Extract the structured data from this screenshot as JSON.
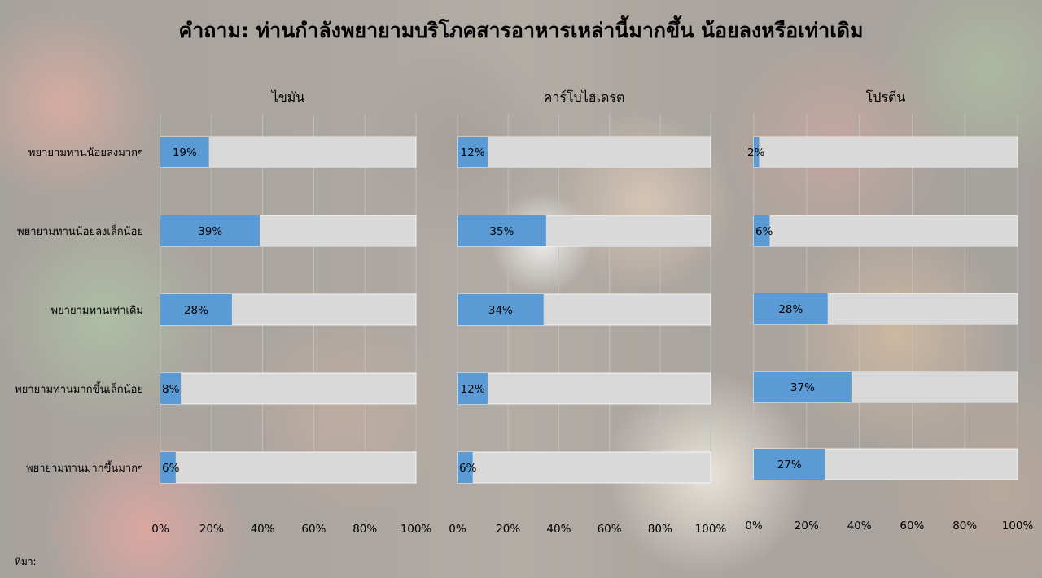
{
  "title": "คำถาม: ท่านกำลังพยายามบริโภคสารอาหารเหล่านี้มากขึ้น น้อยลงหรือเท่าเดิม",
  "source_label": "ที่มา:",
  "colors": {
    "bar": "#5b9bd5",
    "track": "#d9d9d9",
    "grid": "#bfbfbf"
  },
  "chart_data": [
    {
      "type": "bar",
      "orientation": "horizontal",
      "title": "ไขมัน",
      "categories": [
        "พยายามทานน้อยลงมากๆ",
        "พยายามทานน้อยลงเล็กน้อย",
        "พยายามทานเท่าเดิม",
        "พยายามทานมากขึ้นเล็กน้อย",
        "พยายามทานมากขึ้นมากๆ"
      ],
      "values": [
        19,
        39,
        28,
        8,
        6
      ],
      "data_labels": [
        "19%",
        "39%",
        "28%",
        "8%",
        "6%"
      ],
      "xlim": [
        0,
        100
      ],
      "ticks": [
        "0%",
        "20%",
        "40%",
        "60%",
        "80%",
        "100%"
      ],
      "grid": true
    },
    {
      "type": "bar",
      "orientation": "horizontal",
      "title": "คาร์โบไฮเดรต",
      "categories": [
        "พยายามทานน้อยลงมากๆ",
        "พยายามทานน้อยลงเล็กน้อย",
        "พยายามทานเท่าเดิม",
        "พยายามทานมากขึ้นเล็กน้อย",
        "พยายามทานมากขึ้นมากๆ"
      ],
      "values": [
        12,
        35,
        34,
        12,
        6
      ],
      "data_labels": [
        "12%",
        "35%",
        "34%",
        "12%",
        "6%"
      ],
      "xlim": [
        0,
        100
      ],
      "ticks": [
        "0%",
        "20%",
        "40%",
        "60%",
        "80%",
        "100%"
      ],
      "grid": true
    },
    {
      "type": "bar",
      "orientation": "horizontal",
      "title": "โปรตีน",
      "categories": [
        "พยายามทานน้อยลงมากๆ",
        "พยายามทานน้อยลงเล็กน้อย",
        "พยายามทานเท่าเดิม",
        "พยายามทานมากขึ้นเล็กน้อย",
        "พยายามทานมากขึ้นมากๆ"
      ],
      "values": [
        2,
        6,
        28,
        37,
        27
      ],
      "data_labels": [
        "2%",
        "6%",
        "28%",
        "37%",
        "27%"
      ],
      "xlim": [
        0,
        100
      ],
      "ticks": [
        "0%",
        "20%",
        "40%",
        "60%",
        "80%",
        "100%"
      ],
      "grid": true
    }
  ]
}
